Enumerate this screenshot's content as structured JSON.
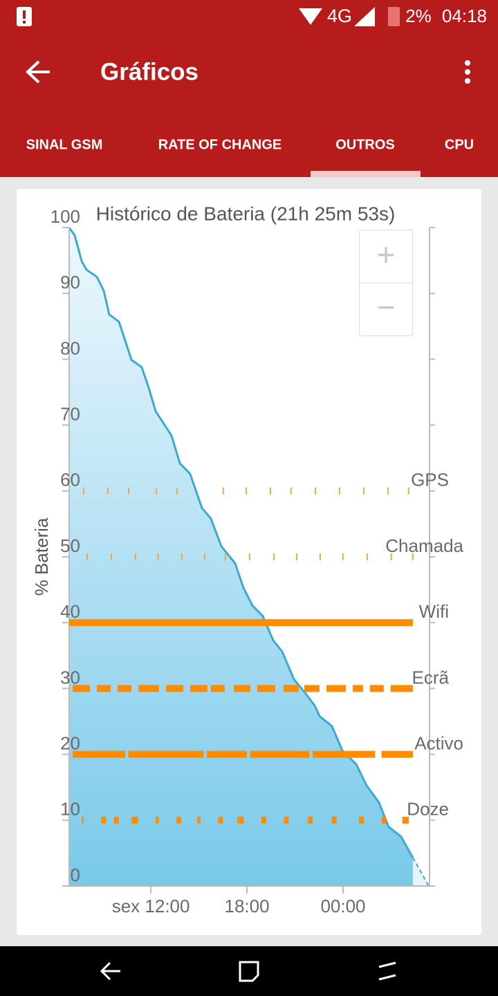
{
  "status_bar": {
    "network": "4G",
    "battery": "2%",
    "time": "04:18"
  },
  "app_bar": {
    "title": "Gráficos"
  },
  "tabs": [
    "SINAL GSM",
    "RATE OF CHANGE",
    "OUTROS",
    "CPU"
  ],
  "zoom_controls": [
    "+",
    "−"
  ],
  "chart_data": {
    "type": "area",
    "title": "Histórico de Bateria (21h 25m 53s)",
    "y_label": "% Bateria",
    "color": "#3aa9d6",
    "x": [
      6.9,
      7.25,
      7.68,
      7.98,
      8.63,
      9.06,
      9.4,
      10.01,
      10.79,
      11.43,
      11.86,
      12.3,
      12.73,
      13.29,
      13.81,
      14.45,
      15.19,
      15.75,
      16.4,
      17.26,
      17.78,
      18.34,
      18.99,
      19.64,
      20.2,
      20.93,
      21.58,
      22.23,
      22.53,
      23.3,
      23.95,
      24.82,
      25.46,
      26.24,
      26.84,
      27.62,
      28.36
    ],
    "values": [
      100,
      98.8,
      94.9,
      93.6,
      92.5,
      90.4,
      86.8,
      85.7,
      79.9,
      78.8,
      75.7,
      72.1,
      70.5,
      68.4,
      64.2,
      62.6,
      57.4,
      55.8,
      51.6,
      49,
      45.3,
      42.6,
      41,
      37.3,
      35.6,
      31.4,
      29.5,
      27.4,
      25.8,
      24.3,
      20.6,
      18.5,
      15.3,
      12.7,
      9,
      7.5,
      4.3
    ],
    "projection": {
      "x": [
        28.36,
        29.35
      ],
      "values": [
        4.3,
        0
      ]
    },
    "xlim": [
      6.9,
      29.7
    ],
    "ylim": [
      0,
      100
    ],
    "xticks": [
      {
        "value": 12,
        "label": "sex 12:00"
      },
      {
        "value": 18,
        "label": "18:00"
      },
      {
        "value": 24,
        "label": "00:00"
      }
    ],
    "yticks": [
      0,
      10,
      20,
      30,
      40,
      50,
      60,
      70,
      80,
      90,
      100
    ],
    "events": [
      {
        "name": "GPS",
        "level": 60,
        "color": "#f2a848",
        "segments": [
          [
            7.76,
            7.81
          ],
          [
            9.27,
            9.32
          ],
          [
            10.57,
            10.62
          ],
          [
            12.3,
            12.35
          ],
          [
            13.59,
            13.64
          ],
          [
            16.48,
            16.53
          ],
          [
            17.91,
            17.96
          ],
          [
            19.42,
            19.47
          ],
          [
            20.71,
            20.76
          ],
          [
            22.23,
            22.28
          ],
          [
            23.74,
            23.79
          ],
          [
            25.25,
            25.3
          ],
          [
            26.76,
            26.81
          ],
          [
            28.05,
            28.1
          ]
        ]
      },
      {
        "name": "Chamada",
        "level": 50,
        "color": "#f2a848",
        "segments": [
          [
            7.98,
            8.03
          ],
          [
            9.49,
            9.54
          ],
          [
            10.99,
            11.04
          ],
          [
            12.41,
            12.46
          ],
          [
            13.89,
            13.94
          ],
          [
            15.32,
            15.37
          ],
          [
            16.61,
            16.66
          ],
          [
            18.12,
            18.17
          ],
          [
            19.64,
            19.69
          ],
          [
            21.06,
            21.11
          ],
          [
            22.53,
            22.58
          ],
          [
            23.95,
            24
          ],
          [
            25.46,
            25.51
          ],
          [
            26.97,
            27.02
          ],
          [
            28.31,
            28.36
          ]
        ]
      },
      {
        "name": "Wifi",
        "level": 40,
        "color": "#ff8c00",
        "segments": [
          [
            6.9,
            28.36
          ]
        ]
      },
      {
        "name": "Ecrã",
        "level": 30,
        "color": "#ff8c00",
        "segments": [
          [
            7.12,
            8.2
          ],
          [
            8.63,
            9.49
          ],
          [
            9.92,
            10.79
          ],
          [
            11.22,
            12.51
          ],
          [
            12.94,
            14.02
          ],
          [
            14.45,
            15.53
          ],
          [
            15.75,
            16.61
          ],
          [
            17.17,
            18.21
          ],
          [
            18.64,
            19.76
          ],
          [
            20.28,
            21.23
          ],
          [
            21.58,
            22.53
          ],
          [
            22.96,
            24.17
          ],
          [
            24.6,
            25.25
          ],
          [
            25.68,
            26.54
          ],
          [
            26.97,
            28.36
          ]
        ]
      },
      {
        "name": "Activo",
        "level": 20,
        "color": "#ff8c00",
        "segments": [
          [
            7.12,
            10.4
          ],
          [
            10.6,
            15.3
          ],
          [
            15.5,
            18
          ],
          [
            18.2,
            21.9
          ],
          [
            22.1,
            26
          ],
          [
            26.4,
            28.36
          ]
        ]
      },
      {
        "name": "Doze",
        "level": 10,
        "color": "#ff8c00",
        "segments": [
          [
            7.7,
            7.8
          ],
          [
            8.9,
            9.2
          ],
          [
            9.7,
            10
          ],
          [
            10.8,
            11.2
          ],
          [
            12.3,
            12.5
          ],
          [
            13.6,
            13.9
          ],
          [
            14.9,
            15.1
          ],
          [
            16.2,
            16.5
          ],
          [
            17.4,
            17.8
          ],
          [
            18.9,
            19.2
          ],
          [
            20.3,
            20.6
          ],
          [
            21.8,
            22.1
          ],
          [
            23.3,
            23.6
          ],
          [
            25,
            25.3
          ],
          [
            26.4,
            26.7
          ],
          [
            27.7,
            28.1
          ]
        ]
      }
    ]
  }
}
